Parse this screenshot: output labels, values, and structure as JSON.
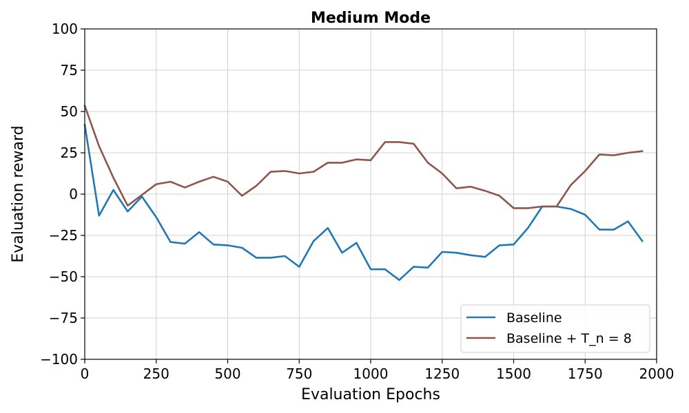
{
  "chart_data": {
    "type": "line",
    "title": "Medium Mode",
    "xlabel": "Evaluation Epochs",
    "ylabel": "Evaluation reward",
    "xlim": [
      0,
      2000
    ],
    "ylim": [
      -100,
      100
    ],
    "xticks": [
      0,
      250,
      500,
      750,
      1000,
      1250,
      1500,
      1750,
      2000
    ],
    "yticks": [
      -100,
      -75,
      -50,
      -25,
      0,
      25,
      50,
      75,
      100
    ],
    "xtick_labels": [
      "0",
      "250",
      "500",
      "750",
      "1000",
      "1250",
      "1500",
      "1750",
      "2000"
    ],
    "ytick_labels": [
      "−100",
      "−75",
      "−50",
      "−25",
      "0",
      "25",
      "50",
      "75",
      "100"
    ],
    "grid": true,
    "legend_position": "lower-right",
    "x": [
      0,
      50,
      100,
      150,
      200,
      250,
      300,
      350,
      400,
      450,
      500,
      550,
      600,
      650,
      700,
      750,
      800,
      850,
      900,
      950,
      1000,
      1050,
      1100,
      1150,
      1200,
      1250,
      1300,
      1350,
      1400,
      1450,
      1500,
      1550,
      1600,
      1650,
      1700,
      1750,
      1800,
      1850,
      1900,
      1950
    ],
    "series": [
      {
        "name": "Baseline",
        "color": "#1f77b4",
        "values": [
          42,
          -13,
          2.5,
          -10.5,
          -1.5,
          -14,
          -29,
          -30,
          -23,
          -30.5,
          -31,
          -32.5,
          -38.5,
          -38.5,
          -37.5,
          -44,
          -28.5,
          -20.5,
          -35.5,
          -29.5,
          -45.5,
          -45.5,
          -52,
          -44,
          -44.5,
          -35,
          -35.5,
          -37,
          -38,
          -31,
          -30.5,
          -20.5,
          -7.5,
          -7.5,
          -9,
          -12.5,
          -21.5,
          -21.5,
          -16.5,
          -28.5
        ]
      },
      {
        "name": "Baseline + T_n = 8",
        "color": "#8c564b",
        "values": [
          53.5,
          29,
          10,
          -7,
          -0.5,
          6,
          7.5,
          4,
          7.5,
          10.5,
          7.5,
          -1,
          5,
          13.5,
          14,
          12.5,
          13.5,
          19,
          19,
          21,
          20.5,
          31.5,
          31.5,
          30.5,
          19,
          12.5,
          3.5,
          4.5,
          2,
          -1,
          -8.5,
          -8.5,
          -7.5,
          -7.5,
          5.5,
          14,
          24,
          23.5,
          25,
          26
        ]
      }
    ]
  }
}
